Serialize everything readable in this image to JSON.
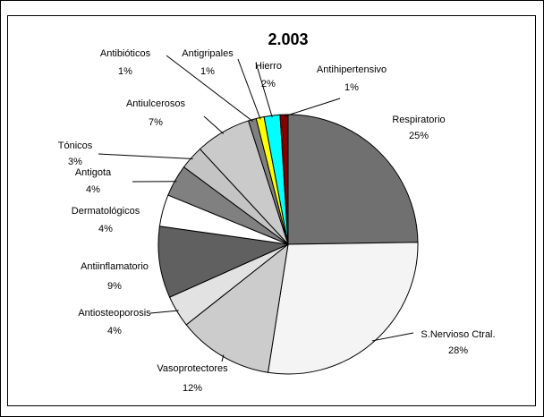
{
  "chart_data": {
    "type": "pie",
    "title": "2.003",
    "categories": [
      "Respiratorio",
      "S.Nervioso Ctral.",
      "Vasoprotectores",
      "Antiosteoporosis",
      "Antiinflamatorio",
      "Dermatológicos",
      "Antigota",
      "Tónicos",
      "Antiulcerosos",
      "Antibióticos",
      "Antigripales",
      "Hierro",
      "Antihipertensivo"
    ],
    "values": [
      25,
      28,
      12,
      4,
      9,
      4,
      4,
      3,
      7,
      1,
      1,
      2,
      1
    ],
    "value_labels": [
      "25%",
      "28%",
      "12%",
      "4%",
      "9%",
      "4%",
      "4%",
      "3%",
      "7%",
      "1%",
      "1%",
      "2%",
      "1%"
    ],
    "colors": [
      "#707070",
      "#f4f4f4",
      "#cccccc",
      "#e2e2e2",
      "#606060",
      "#ffffff",
      "#808080",
      "#c4c4c4",
      "#cacaca",
      "#808080",
      "#ffff00",
      "#00ffff",
      "#800000"
    ]
  }
}
